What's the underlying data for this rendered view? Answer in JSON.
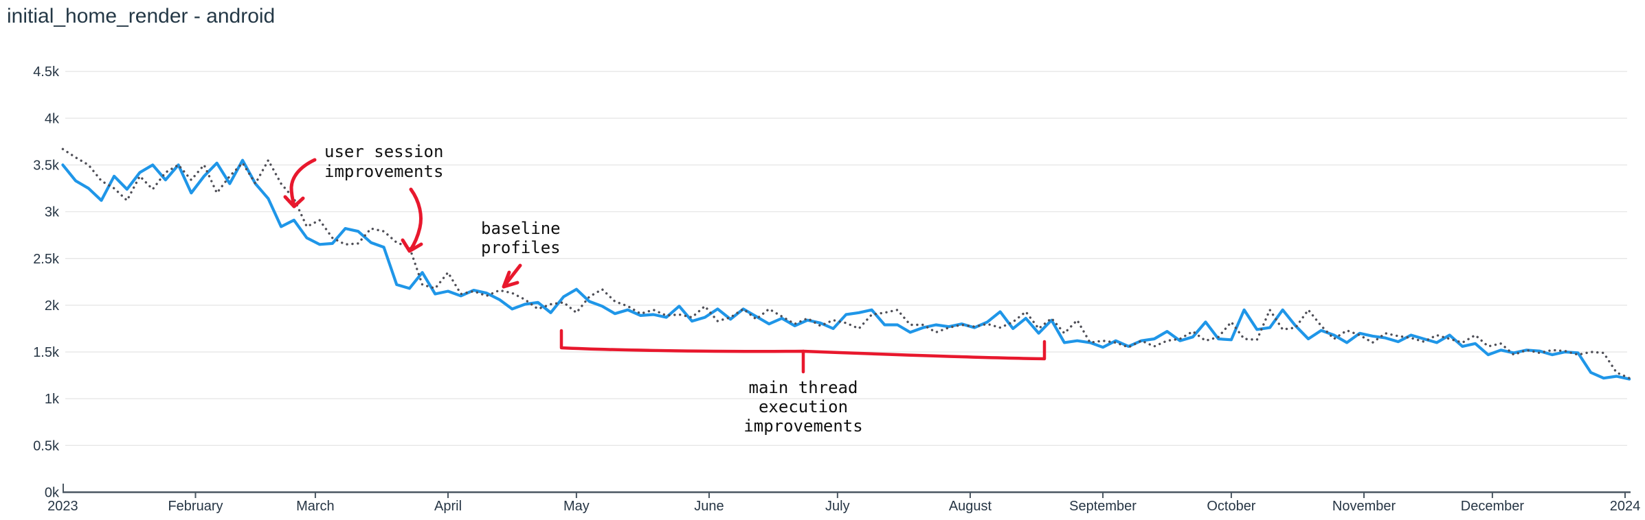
{
  "title": "initial_home_render - android",
  "chart_data": {
    "type": "line",
    "title": "initial_home_render - android",
    "xlabel": "",
    "ylabel": "",
    "ylim": [
      0,
      4500
    ],
    "grid": "horizontal",
    "legend": "none",
    "x_unit": "day of year 2023",
    "sample_interval_days": 3,
    "x_ticks": {
      "days": [
        0,
        31,
        59,
        90,
        120,
        151,
        181,
        212,
        243,
        273,
        304,
        334,
        365
      ],
      "labels": [
        "2023",
        "February",
        "March",
        "April",
        "May",
        "June",
        "July",
        "August",
        "September",
        "October",
        "November",
        "December",
        "2024"
      ]
    },
    "y_ticks": {
      "values": [
        0,
        500,
        1000,
        1500,
        2000,
        2500,
        3000,
        3500,
        4000,
        4500
      ],
      "labels": [
        "0k",
        "0.5k",
        "1k",
        "1.5k",
        "2k",
        "2.5k",
        "3k",
        "3.5k",
        "4k",
        "4.5k"
      ]
    },
    "series": [
      {
        "name": "blue-solid",
        "style": "solid",
        "color": "#1f96e8",
        "values": [
          3500,
          3330,
          3250,
          3120,
          3380,
          3240,
          3420,
          3500,
          3340,
          3500,
          3200,
          3380,
          3520,
          3300,
          3550,
          3300,
          3140,
          2840,
          2910,
          2720,
          2650,
          2660,
          2820,
          2790,
          2670,
          2620,
          2220,
          2180,
          2350,
          2120,
          2150,
          2100,
          2160,
          2130,
          2060,
          1960,
          2010,
          2030,
          1920,
          2090,
          2170,
          2040,
          1990,
          1910,
          1950,
          1890,
          1900,
          1870,
          1990,
          1830,
          1870,
          1960,
          1850,
          1960,
          1880,
          1800,
          1860,
          1780,
          1840,
          1810,
          1750,
          1900,
          1920,
          1950,
          1790,
          1790,
          1710,
          1760,
          1790,
          1770,
          1800,
          1760,
          1820,
          1930,
          1750,
          1860,
          1700,
          1840,
          1600,
          1620,
          1600,
          1550,
          1620,
          1560,
          1620,
          1640,
          1720,
          1620,
          1660,
          1820,
          1640,
          1630,
          1950,
          1740,
          1760,
          1950,
          1780,
          1640,
          1730,
          1680,
          1600,
          1700,
          1670,
          1650,
          1610,
          1680,
          1640,
          1600,
          1680,
          1560,
          1590,
          1470,
          1520,
          1490,
          1520,
          1510,
          1470,
          1500,
          1490,
          1280,
          1220,
          1240,
          1210
        ]
      },
      {
        "name": "gray-dotted",
        "style": "dotted",
        "color": "#4f4f57",
        "values": [
          3670,
          3580,
          3500,
          3330,
          3250,
          3120,
          3380,
          3240,
          3420,
          3500,
          3340,
          3500,
          3200,
          3380,
          3520,
          3300,
          3550,
          3300,
          3140,
          2840,
          2910,
          2720,
          2650,
          2660,
          2820,
          2790,
          2670,
          2620,
          2220,
          2180,
          2350,
          2120,
          2150,
          2100,
          2160,
          2130,
          2060,
          1960,
          2010,
          2030,
          1920,
          2090,
          2170,
          2040,
          1990,
          1910,
          1950,
          1890,
          1900,
          1870,
          1990,
          1830,
          1870,
          1960,
          1850,
          1960,
          1880,
          1800,
          1860,
          1780,
          1840,
          1810,
          1750,
          1900,
          1920,
          1950,
          1790,
          1790,
          1710,
          1760,
          1790,
          1770,
          1800,
          1760,
          1820,
          1930,
          1750,
          1860,
          1700,
          1840,
          1600,
          1620,
          1600,
          1550,
          1620,
          1560,
          1620,
          1640,
          1720,
          1620,
          1660,
          1820,
          1640,
          1630,
          1950,
          1740,
          1760,
          1950,
          1780,
          1640,
          1730,
          1680,
          1600,
          1700,
          1670,
          1650,
          1610,
          1680,
          1640,
          1600,
          1680,
          1560,
          1590,
          1470,
          1520,
          1490,
          1520,
          1510,
          1470,
          1500,
          1490,
          1280,
          1220
        ]
      }
    ],
    "annotation_color": "#e8182d",
    "annotations": [
      {
        "id": "user-session",
        "label": "user session\nimprovements"
      },
      {
        "id": "baseline-profiles",
        "label": "baseline\nprofiles"
      },
      {
        "id": "main-thread",
        "label": "main thread\nexecution\nimprovements"
      }
    ]
  }
}
